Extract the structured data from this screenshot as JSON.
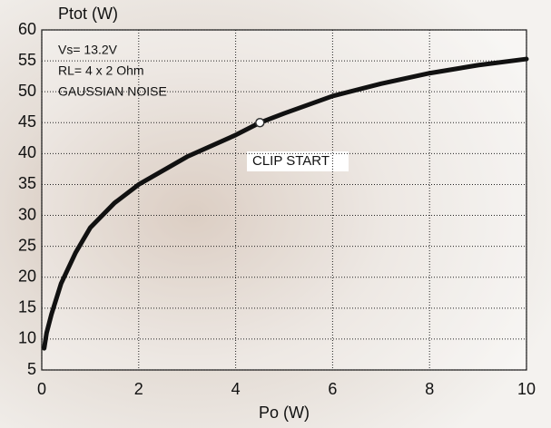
{
  "chart_data": {
    "type": "line",
    "ylabel": "Ptot (W)",
    "xlabel": "Po (W)",
    "annotations": [
      "Vs= 13.2V",
      "RL= 4 x 2 Ohm",
      "GAUSSIAN NOISE"
    ],
    "clip_label": "CLIP START",
    "clip_point": [
      4.5,
      45
    ],
    "x": [
      0.05,
      0.1,
      0.2,
      0.4,
      0.7,
      1,
      1.5,
      2,
      3,
      4,
      4.5,
      5,
      6,
      7,
      8,
      9,
      10
    ],
    "series": [
      {
        "color": "#111111",
        "values": [
          8.5,
          11,
          14,
          19,
          24,
          28,
          32,
          35,
          39.5,
          43,
          45,
          46.5,
          49.3,
          51.3,
          53,
          54.3,
          55.3
        ]
      }
    ],
    "xlim": [
      0,
      10
    ],
    "xticks": [
      0,
      2,
      4,
      6,
      8,
      10
    ],
    "ylim": [
      5,
      60
    ],
    "yticks": [
      5,
      10,
      15,
      20,
      25,
      30,
      35,
      40,
      45,
      50,
      55,
      60
    ],
    "grid": true
  }
}
